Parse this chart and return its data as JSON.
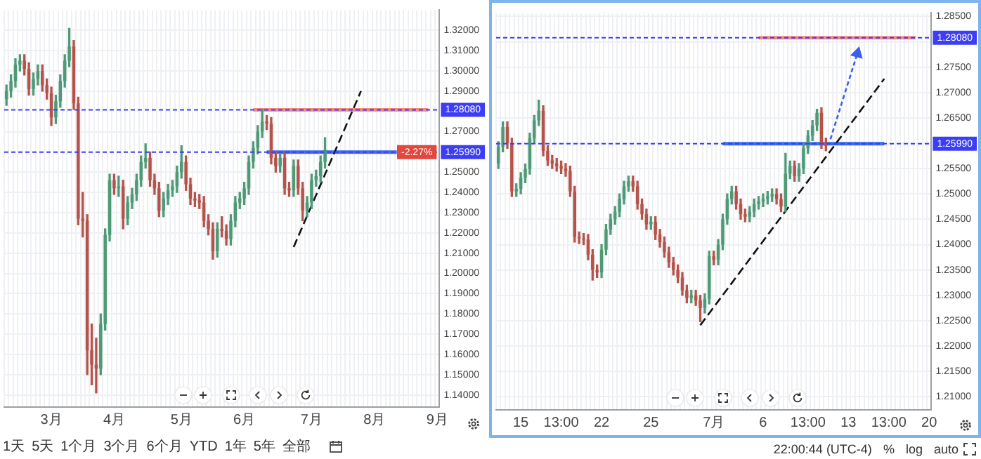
{
  "chart_data": [
    {
      "type": "candlestick",
      "grid": true,
      "categories": [
        null,
        null,
        null,
        null,
        null,
        null,
        null,
        null,
        null,
        null,
        "3月",
        null,
        null,
        null,
        null,
        null,
        null,
        null,
        null,
        null,
        null,
        null,
        null,
        null,
        "4月",
        null,
        null,
        null,
        null,
        null,
        null,
        null,
        null,
        null,
        null,
        null,
        null,
        null,
        null,
        "5月",
        null,
        null,
        null,
        null,
        null,
        null,
        null,
        null,
        null,
        null,
        null,
        null,
        null,
        "6月",
        null,
        null,
        null,
        null,
        null,
        null,
        null,
        null,
        null,
        null,
        null,
        null,
        null,
        null,
        "7月",
        null,
        null,
        null,
        null,
        null,
        null,
        null,
        null,
        null,
        null,
        null,
        null,
        null,
        "8月",
        null,
        null,
        null,
        null,
        null,
        null,
        null,
        null,
        null,
        null,
        null,
        null,
        null,
        "9月"
      ],
      "ohlc": [
        [
          1.286,
          1.293,
          1.283,
          1.29
        ],
        [
          1.29,
          1.298,
          1.287,
          1.295
        ],
        [
          1.295,
          1.306,
          1.292,
          1.303
        ],
        [
          1.303,
          1.308,
          1.3,
          1.305
        ],
        [
          1.305,
          1.308,
          1.298,
          1.301
        ],
        [
          1.301,
          1.304,
          1.288,
          1.291
        ],
        [
          1.291,
          1.299,
          1.288,
          1.296
        ],
        [
          1.296,
          1.303,
          1.293,
          1.3
        ],
        [
          1.3,
          1.303,
          1.29,
          1.293
        ],
        [
          1.293,
          1.296,
          1.286,
          1.289
        ],
        [
          1.289,
          1.292,
          1.273,
          1.277
        ],
        [
          1.277,
          1.288,
          1.274,
          1.285
        ],
        [
          1.285,
          1.298,
          1.282,
          1.295
        ],
        [
          1.295,
          1.308,
          1.292,
          1.305
        ],
        [
          1.305,
          1.321,
          1.302,
          1.312
        ],
        [
          1.312,
          1.315,
          1.281,
          1.284
        ],
        [
          1.284,
          1.287,
          1.224,
          1.227
        ],
        [
          1.227,
          1.24,
          1.218,
          1.226
        ],
        [
          1.226,
          1.229,
          1.15,
          1.162
        ],
        [
          1.162,
          1.175,
          1.145,
          1.155
        ],
        [
          1.155,
          1.168,
          1.141,
          1.153
        ],
        [
          1.153,
          1.18,
          1.15,
          1.175
        ],
        [
          1.175,
          1.222,
          1.172,
          1.219
        ],
        [
          1.219,
          1.249,
          1.216,
          1.246
        ],
        [
          1.246,
          1.249,
          1.239,
          1.242
        ],
        [
          1.242,
          1.248,
          1.238,
          1.243
        ],
        [
          1.243,
          1.246,
          1.222,
          1.227
        ],
        [
          1.227,
          1.238,
          1.224,
          1.235
        ],
        [
          1.235,
          1.242,
          1.232,
          1.239
        ],
        [
          1.239,
          1.249,
          1.236,
          1.246
        ],
        [
          1.246,
          1.258,
          1.243,
          1.255
        ],
        [
          1.255,
          1.264,
          1.252,
          1.257
        ],
        [
          1.257,
          1.26,
          1.243,
          1.246
        ],
        [
          1.246,
          1.249,
          1.239,
          1.242
        ],
        [
          1.242,
          1.245,
          1.228,
          1.231
        ],
        [
          1.231,
          1.24,
          1.228,
          1.237
        ],
        [
          1.237,
          1.244,
          1.234,
          1.241
        ],
        [
          1.241,
          1.246,
          1.238,
          1.243
        ],
        [
          1.243,
          1.253,
          1.24,
          1.25
        ],
        [
          1.25,
          1.263,
          1.247,
          1.255
        ],
        [
          1.255,
          1.258,
          1.241,
          1.244
        ],
        [
          1.244,
          1.247,
          1.234,
          1.237
        ],
        [
          1.237,
          1.24,
          1.233,
          1.236
        ],
        [
          1.236,
          1.239,
          1.232,
          1.235
        ],
        [
          1.235,
          1.238,
          1.223,
          1.226
        ],
        [
          1.226,
          1.229,
          1.219,
          1.222
        ],
        [
          1.222,
          1.225,
          1.207,
          1.211
        ],
        [
          1.211,
          1.225,
          1.208,
          1.222
        ],
        [
          1.222,
          1.228,
          1.218,
          1.221
        ],
        [
          1.221,
          1.224,
          1.214,
          1.217
        ],
        [
          1.217,
          1.229,
          1.214,
          1.226
        ],
        [
          1.226,
          1.238,
          1.223,
          1.235
        ],
        [
          1.235,
          1.24,
          1.232,
          1.237
        ],
        [
          1.237,
          1.245,
          1.234,
          1.242
        ],
        [
          1.242,
          1.258,
          1.239,
          1.255
        ],
        [
          1.255,
          1.265,
          1.252,
          1.262
        ],
        [
          1.262,
          1.273,
          1.259,
          1.27
        ],
        [
          1.27,
          1.281,
          1.267,
          1.275
        ],
        [
          1.275,
          1.278,
          1.271,
          1.274
        ],
        [
          1.274,
          1.277,
          1.254,
          1.257
        ],
        [
          1.257,
          1.26,
          1.25,
          1.253
        ],
        [
          1.253,
          1.26,
          1.25,
          1.257
        ],
        [
          1.257,
          1.26,
          1.239,
          1.242
        ],
        [
          1.242,
          1.245,
          1.238,
          1.241
        ],
        [
          1.241,
          1.256,
          1.238,
          1.253
        ],
        [
          1.253,
          1.256,
          1.239,
          1.242
        ],
        [
          1.242,
          1.245,
          1.226,
          1.231
        ],
        [
          1.231,
          1.238,
          1.228,
          1.235
        ],
        [
          1.235,
          1.249,
          1.232,
          1.246
        ],
        [
          1.246,
          1.251,
          1.243,
          1.248
        ],
        [
          1.248,
          1.258,
          1.245,
          1.255
        ],
        [
          1.255,
          1.267,
          1.252,
          1.261
        ],
        null,
        null,
        null,
        null,
        null,
        null,
        null,
        null,
        null,
        null,
        null,
        null,
        null,
        null,
        null,
        null,
        null,
        null,
        null,
        null,
        null,
        null,
        null,
        null,
        null
      ],
      "colors": [
        "#4e9a77",
        "#4e9a77",
        "#4e9a77",
        "#4e9a77",
        "#b5534a",
        "#b5534a",
        "#4e9a77",
        "#4e9a77",
        "#b5534a",
        "#b5534a",
        "#b5534a",
        "#4e9a77",
        "#4e9a77",
        "#4e9a77",
        "#4e9a77",
        "#b5534a",
        "#b5534a",
        "#b5534a",
        "#b5534a",
        "#b5534a",
        "#b5534a",
        "#4e9a77",
        "#4e9a77",
        "#4e9a77",
        "#b5534a",
        "#4e9a77",
        "#b5534a",
        "#4e9a77",
        "#4e9a77",
        "#4e9a77",
        "#4e9a77",
        "#4e9a77",
        "#b5534a",
        "#b5534a",
        "#b5534a",
        "#4e9a77",
        "#4e9a77",
        "#4e9a77",
        "#4e9a77",
        "#4e9a77",
        "#b5534a",
        "#b5534a",
        "#b5534a",
        "#b5534a",
        "#b5534a",
        "#b5534a",
        "#b5534a",
        "#4e9a77",
        "#b5534a",
        "#b5534a",
        "#4e9a77",
        "#4e9a77",
        "#4e9a77",
        "#4e9a77",
        "#4e9a77",
        "#4e9a77",
        "#4e9a77",
        "#4e9a77",
        "#b5534a",
        "#b5534a",
        "#b5534a",
        "#4e9a77",
        "#b5534a",
        "#b5534a",
        "#4e9a77",
        "#b5534a",
        "#b5534a",
        "#4e9a77",
        "#4e9a77",
        "#4e9a77",
        "#4e9a77",
        "#4e9a77",
        null,
        null,
        null,
        null,
        null,
        null,
        null,
        null,
        null,
        null,
        null,
        null,
        null,
        null,
        null,
        null,
        null,
        null,
        null,
        null,
        null,
        null,
        null,
        null,
        null
      ],
      "series": [
        {
          "type": "line",
          "color": "#111111",
          "line_style": "dashed",
          "marker": "none",
          "values": [
            null,
            null,
            null,
            null,
            null,
            null,
            null,
            null,
            null,
            null,
            null,
            null,
            null,
            null,
            null,
            null,
            null,
            null,
            null,
            null,
            null,
            null,
            null,
            null,
            null,
            null,
            null,
            null,
            null,
            null,
            null,
            null,
            null,
            null,
            null,
            null,
            null,
            null,
            null,
            null,
            null,
            null,
            null,
            null,
            null,
            null,
            null,
            null,
            null,
            null,
            null,
            null,
            null,
            null,
            null,
            null,
            null,
            null,
            null,
            null,
            null,
            null,
            null,
            null,
            1.213,
            null,
            null,
            null,
            null,
            null,
            null,
            null,
            null,
            null,
            null,
            null,
            null,
            null,
            null,
            1.29,
            null,
            null,
            null,
            null,
            null,
            null,
            null,
            null,
            null,
            null,
            null,
            null,
            null,
            null,
            null,
            null,
            null
          ]
        },
        {
          "type": "line",
          "color": "#f08a8a",
          "line_style": "solid",
          "marker": "none",
          "values": [
            null,
            null,
            null,
            null,
            null,
            null,
            null,
            null,
            null,
            null,
            null,
            null,
            null,
            null,
            null,
            null,
            null,
            null,
            null,
            null,
            null,
            null,
            null,
            null,
            null,
            null,
            null,
            null,
            null,
            null,
            null,
            null,
            null,
            null,
            null,
            null,
            null,
            null,
            null,
            null,
            null,
            null,
            null,
            null,
            null,
            null,
            null,
            null,
            null,
            null,
            null,
            null,
            null,
            null,
            null,
            1.2808,
            null,
            null,
            null,
            null,
            null,
            null,
            null,
            null,
            null,
            null,
            null,
            null,
            null,
            null,
            null,
            null,
            null,
            null,
            null,
            null,
            null,
            null,
            null,
            null,
            null,
            null,
            null,
            null,
            null,
            null,
            null,
            null,
            null,
            null,
            null,
            null,
            null,
            null,
            1.2808,
            null,
            null
          ]
        },
        {
          "type": "line",
          "color": "#3b6ff0",
          "line_style": "solid",
          "marker": "none",
          "values": [
            null,
            null,
            null,
            null,
            null,
            null,
            null,
            null,
            null,
            null,
            null,
            null,
            null,
            null,
            null,
            null,
            null,
            null,
            null,
            null,
            null,
            null,
            null,
            null,
            null,
            null,
            null,
            null,
            null,
            null,
            null,
            null,
            null,
            null,
            null,
            null,
            null,
            null,
            null,
            null,
            null,
            null,
            null,
            null,
            null,
            null,
            null,
            null,
            null,
            null,
            null,
            null,
            null,
            null,
            null,
            null,
            null,
            null,
            1.2599,
            null,
            null,
            null,
            null,
            null,
            null,
            null,
            null,
            null,
            null,
            null,
            null,
            null,
            null,
            null,
            null,
            null,
            null,
            null,
            null,
            null,
            null,
            null,
            null,
            null,
            null,
            null,
            null,
            1.2599,
            null,
            null,
            null,
            null,
            null,
            null,
            null,
            null,
            null
          ]
        }
      ],
      "ylim": [
        1.134,
        1.33
      ],
      "yticks": [
        {
          "value": 1.14,
          "label": "1.14000"
        },
        {
          "value": 1.15,
          "label": "1.15000"
        },
        {
          "value": 1.16,
          "label": "1.16000"
        },
        {
          "value": 1.17,
          "label": "1.17000"
        },
        {
          "value": 1.18,
          "label": "1.18000"
        },
        {
          "value": 1.19,
          "label": "1.19000"
        },
        {
          "value": 1.2,
          "label": "1.20000"
        },
        {
          "value": 1.21,
          "label": "1.21000"
        },
        {
          "value": 1.22,
          "label": "1.22000"
        },
        {
          "value": 1.23,
          "label": "1.23000"
        },
        {
          "value": 1.24,
          "label": "1.24000"
        },
        {
          "value": 1.25,
          "label": "1.25000"
        },
        {
          "value": 1.27,
          "label": "1.27000"
        },
        {
          "value": 1.29,
          "label": "1.29000"
        },
        {
          "value": 1.3,
          "label": "1.30000"
        },
        {
          "value": 1.31,
          "label": "1.31000"
        },
        {
          "value": 1.32,
          "label": "1.32000"
        }
      ],
      "ref_lines": [
        {
          "axis": "y",
          "value": 1.2808,
          "label": "1.28080",
          "color": "#3d3df5",
          "line_style": "dotted"
        },
        {
          "axis": "y",
          "value": 1.2599,
          "label": "1.25990",
          "color": "#3d3df5",
          "line_style": "dotted"
        }
      ],
      "annotations": [
        {
          "text": "-2.27%",
          "y": 1.2599
        },
        "1天",
        "5天",
        "1个月",
        "3个月",
        "6个月",
        "YTD",
        "1年",
        "5年",
        "全部"
      ]
    },
    {
      "type": "candlestick",
      "grid": true,
      "categories": [
        null,
        null,
        null,
        null,
        null,
        "15",
        null,
        null,
        null,
        null,
        null,
        null,
        null,
        null,
        "13:00",
        null,
        null,
        null,
        null,
        null,
        null,
        null,
        null,
        "22",
        null,
        null,
        null,
        null,
        null,
        null,
        null,
        null,
        null,
        null,
        "25",
        null,
        null,
        null,
        null,
        null,
        null,
        null,
        null,
        null,
        null,
        null,
        null,
        null,
        "7月",
        null,
        null,
        null,
        null,
        null,
        null,
        null,
        null,
        null,
        null,
        "6",
        null,
        null,
        null,
        null,
        null,
        null,
        null,
        null,
        null,
        "13:00",
        null,
        null,
        null,
        null,
        null,
        null,
        null,
        null,
        "13",
        null,
        null,
        null,
        null,
        null,
        null,
        null,
        null,
        "13:00",
        null,
        null,
        null,
        null,
        null,
        null,
        null,
        null,
        "20"
      ],
      "ohlc": [
        [
          1.256,
          1.2603,
          1.255,
          1.2593
        ],
        [
          1.2593,
          1.2642,
          1.2583,
          1.2632
        ],
        [
          1.2632,
          1.2642,
          1.259,
          1.26
        ],
        [
          1.26,
          1.261,
          1.2495,
          1.2505
        ],
        [
          1.2505,
          1.252,
          1.2495,
          1.251
        ],
        [
          1.251,
          1.2542,
          1.25,
          1.2532
        ],
        [
          1.2532,
          1.2559,
          1.2522,
          1.2549
        ],
        [
          1.2549,
          1.262,
          1.2539,
          1.261
        ],
        [
          1.261,
          1.2655,
          1.26,
          1.2645
        ],
        [
          1.2645,
          1.2685,
          1.2635,
          1.2664
        ],
        [
          1.2664,
          1.2674,
          1.2575,
          1.2585
        ],
        [
          1.2585,
          1.2595,
          1.2556,
          1.2566
        ],
        [
          1.2566,
          1.2576,
          1.255,
          1.256
        ],
        [
          1.256,
          1.257,
          1.2545,
          1.2555
        ],
        [
          1.2555,
          1.2565,
          1.254,
          1.255
        ],
        [
          1.255,
          1.256,
          1.2535,
          1.2545
        ],
        [
          1.2545,
          1.2555,
          1.2495,
          1.2505
        ],
        [
          1.2505,
          1.2515,
          1.2405,
          1.2415
        ],
        [
          1.2415,
          1.2425,
          1.2402,
          1.2412
        ],
        [
          1.2412,
          1.2422,
          1.24,
          1.241
        ],
        [
          1.241,
          1.242,
          1.237,
          1.238
        ],
        [
          1.238,
          1.239,
          1.233,
          1.235
        ],
        [
          1.235,
          1.236,
          1.2335,
          1.2345
        ],
        [
          1.2345,
          1.24,
          1.2335,
          1.239
        ],
        [
          1.239,
          1.244,
          1.238,
          1.243
        ],
        [
          1.243,
          1.246,
          1.242,
          1.245
        ],
        [
          1.245,
          1.2475,
          1.244,
          1.2465
        ],
        [
          1.2465,
          1.25,
          1.2455,
          1.249
        ],
        [
          1.249,
          1.2525,
          1.248,
          1.2515
        ],
        [
          1.2515,
          1.2535,
          1.2505,
          1.2525
        ],
        [
          1.2525,
          1.2535,
          1.2505,
          1.2515
        ],
        [
          1.2515,
          1.2525,
          1.247,
          1.248
        ],
        [
          1.248,
          1.249,
          1.245,
          1.246
        ],
        [
          1.246,
          1.247,
          1.243,
          1.244
        ],
        [
          1.244,
          1.2455,
          1.243,
          1.2445
        ],
        [
          1.2445,
          1.2455,
          1.241,
          1.242
        ],
        [
          1.242,
          1.243,
          1.2395,
          1.2405
        ],
        [
          1.2405,
          1.2415,
          1.2375,
          1.2385
        ],
        [
          1.2385,
          1.2395,
          1.2355,
          1.2365
        ],
        [
          1.2365,
          1.2375,
          1.234,
          1.235
        ],
        [
          1.235,
          1.236,
          1.2325,
          1.2335
        ],
        [
          1.2335,
          1.2345,
          1.23,
          1.231
        ],
        [
          1.231,
          1.232,
          1.2285,
          1.2295
        ],
        [
          1.2295,
          1.231,
          1.2285,
          1.23
        ],
        [
          1.23,
          1.231,
          1.228,
          1.229
        ],
        [
          1.229,
          1.23,
          1.2248,
          1.2275
        ],
        [
          1.2275,
          1.2303,
          1.2265,
          1.2293
        ],
        [
          1.2293,
          1.2387,
          1.2283,
          1.2377
        ],
        [
          1.2377,
          1.2387,
          1.236,
          1.237
        ],
        [
          1.237,
          1.241,
          1.236,
          1.24
        ],
        [
          1.24,
          1.246,
          1.239,
          1.245
        ],
        [
          1.245,
          1.25,
          1.244,
          1.249
        ],
        [
          1.249,
          1.2515,
          1.248,
          1.2505
        ],
        [
          1.2505,
          1.2515,
          1.247,
          1.248
        ],
        [
          1.248,
          1.249,
          1.245,
          1.246
        ],
        [
          1.246,
          1.247,
          1.2445,
          1.2455
        ],
        [
          1.2455,
          1.2475,
          1.2445,
          1.2465
        ],
        [
          1.2465,
          1.249,
          1.2455,
          1.248
        ],
        [
          1.248,
          1.2495,
          1.247,
          1.2485
        ],
        [
          1.2485,
          1.25,
          1.2475,
          1.249
        ],
        [
          1.249,
          1.2505,
          1.248,
          1.2495
        ],
        [
          1.2495,
          1.251,
          1.2485,
          1.25
        ],
        [
          1.25,
          1.251,
          1.248,
          1.249
        ],
        [
          1.249,
          1.25,
          1.2465,
          1.2475
        ],
        [
          1.2475,
          1.258,
          1.2465,
          1.254
        ],
        [
          1.254,
          1.2565,
          1.253,
          1.2555
        ],
        [
          1.2555,
          1.2565,
          1.2525,
          1.2535
        ],
        [
          1.2535,
          1.256,
          1.2525,
          1.255
        ],
        [
          1.255,
          1.26,
          1.254,
          1.259
        ],
        [
          1.259,
          1.2625,
          1.258,
          1.2615
        ],
        [
          1.2615,
          1.2645,
          1.2605,
          1.2635
        ],
        [
          1.2635,
          1.2667,
          1.2625,
          1.266
        ],
        [
          1.266,
          1.267,
          1.259,
          1.26
        ],
        [
          1.26,
          1.261,
          1.2585,
          1.2595
        ],
        null,
        null,
        null,
        null,
        null,
        null,
        null,
        null,
        null,
        null,
        null,
        null,
        null,
        null,
        null,
        null,
        null,
        null,
        null,
        null,
        null,
        null,
        null
      ],
      "colors": [
        "#4e9a77",
        "#4e9a77",
        "#b5534a",
        "#b5534a",
        "#4e9a77",
        "#4e9a77",
        "#4e9a77",
        "#4e9a77",
        "#4e9a77",
        "#4e9a77",
        "#b5534a",
        "#b5534a",
        "#b5534a",
        "#b5534a",
        "#b5534a",
        "#b5534a",
        "#b5534a",
        "#b5534a",
        "#b5534a",
        "#b5534a",
        "#b5534a",
        "#b5534a",
        "#b5534a",
        "#4e9a77",
        "#4e9a77",
        "#4e9a77",
        "#4e9a77",
        "#4e9a77",
        "#4e9a77",
        "#4e9a77",
        "#b5534a",
        "#b5534a",
        "#b5534a",
        "#b5534a",
        "#4e9a77",
        "#b5534a",
        "#b5534a",
        "#b5534a",
        "#b5534a",
        "#b5534a",
        "#b5534a",
        "#b5534a",
        "#b5534a",
        "#4e9a77",
        "#b5534a",
        "#b5534a",
        "#4e9a77",
        "#4e9a77",
        "#b5534a",
        "#4e9a77",
        "#4e9a77",
        "#4e9a77",
        "#4e9a77",
        "#b5534a",
        "#b5534a",
        "#b5534a",
        "#4e9a77",
        "#4e9a77",
        "#4e9a77",
        "#4e9a77",
        "#4e9a77",
        "#4e9a77",
        "#b5534a",
        "#b5534a",
        "#4e9a77",
        "#4e9a77",
        "#b5534a",
        "#4e9a77",
        "#4e9a77",
        "#4e9a77",
        "#4e9a77",
        "#4e9a77",
        "#b5534a",
        "#b5534a",
        null,
        null,
        null,
        null,
        null,
        null,
        null,
        null,
        null,
        null,
        null,
        null,
        null,
        null,
        null,
        null,
        null,
        null,
        null,
        null,
        null,
        null,
        null
      ],
      "series": [
        {
          "type": "line",
          "color": "#111111",
          "line_style": "dashed",
          "marker": "none",
          "values": [
            null,
            null,
            null,
            null,
            null,
            null,
            null,
            null,
            null,
            null,
            null,
            null,
            null,
            null,
            null,
            null,
            null,
            null,
            null,
            null,
            null,
            null,
            null,
            null,
            null,
            null,
            null,
            null,
            null,
            null,
            null,
            null,
            null,
            null,
            null,
            null,
            null,
            null,
            null,
            null,
            null,
            null,
            null,
            null,
            null,
            1.2241,
            null,
            null,
            null,
            null,
            null,
            null,
            null,
            null,
            null,
            null,
            null,
            null,
            null,
            null,
            null,
            null,
            null,
            null,
            null,
            null,
            null,
            null,
            null,
            null,
            null,
            null,
            null,
            null,
            null,
            null,
            null,
            null,
            null,
            null,
            null,
            null,
            null,
            null,
            null,
            null,
            1.2727,
            null,
            null,
            null,
            null,
            null,
            null,
            null,
            null,
            null,
            null
          ]
        },
        {
          "type": "line",
          "color": "#3b5ff0",
          "line_style": "dotted",
          "marker": "triangle",
          "values": [
            null,
            null,
            null,
            null,
            null,
            null,
            null,
            null,
            null,
            null,
            null,
            null,
            null,
            null,
            null,
            null,
            null,
            null,
            null,
            null,
            null,
            null,
            null,
            null,
            null,
            null,
            null,
            null,
            null,
            null,
            null,
            null,
            null,
            null,
            null,
            null,
            null,
            null,
            null,
            null,
            null,
            null,
            null,
            null,
            null,
            null,
            null,
            null,
            null,
            null,
            null,
            null,
            null,
            null,
            null,
            null,
            null,
            null,
            null,
            null,
            null,
            null,
            null,
            null,
            null,
            null,
            null,
            null,
            null,
            null,
            null,
            null,
            null,
            null,
            1.2608,
            null,
            null,
            null,
            null,
            null,
            1.2777,
            null,
            null,
            null,
            null,
            null,
            null,
            null,
            null,
            null,
            null,
            null,
            null,
            null,
            null,
            null,
            null
          ]
        },
        {
          "type": "line",
          "color": "#3b6ff0",
          "line_style": "solid",
          "marker": "none",
          "values": [
            null,
            null,
            null,
            null,
            null,
            null,
            null,
            null,
            null,
            null,
            null,
            null,
            null,
            null,
            null,
            null,
            null,
            null,
            null,
            null,
            null,
            null,
            null,
            null,
            null,
            null,
            null,
            null,
            null,
            null,
            null,
            null,
            null,
            null,
            null,
            null,
            null,
            null,
            null,
            null,
            null,
            null,
            null,
            null,
            null,
            null,
            null,
            null,
            null,
            null,
            1.2599,
            null,
            null,
            null,
            null,
            null,
            null,
            null,
            null,
            null,
            null,
            null,
            null,
            null,
            null,
            null,
            null,
            null,
            null,
            null,
            null,
            null,
            null,
            null,
            null,
            null,
            null,
            null,
            null,
            null,
            null,
            null,
            null,
            null,
            null,
            null,
            1.2599,
            null,
            null,
            null,
            null,
            null,
            null,
            null,
            null,
            null,
            null
          ]
        },
        {
          "type": "line",
          "color": "#f08a8a",
          "line_style": "solid",
          "marker": "none",
          "values": [
            null,
            null,
            null,
            null,
            null,
            null,
            null,
            null,
            null,
            null,
            null,
            null,
            null,
            null,
            null,
            null,
            null,
            null,
            null,
            null,
            null,
            null,
            null,
            null,
            null,
            null,
            null,
            null,
            null,
            null,
            null,
            null,
            null,
            null,
            null,
            null,
            null,
            null,
            null,
            null,
            null,
            null,
            null,
            null,
            null,
            null,
            null,
            null,
            null,
            null,
            null,
            null,
            null,
            null,
            null,
            null,
            null,
            null,
            1.2808,
            null,
            null,
            null,
            null,
            null,
            null,
            null,
            null,
            null,
            null,
            null,
            null,
            null,
            null,
            null,
            null,
            null,
            null,
            null,
            null,
            null,
            null,
            null,
            null,
            null,
            null,
            null,
            null,
            null,
            null,
            null,
            null,
            null,
            null,
            1.2808,
            null,
            null,
            null
          ]
        }
      ],
      "ylim": [
        1.2074,
        1.2857
      ],
      "yticks": [
        {
          "value": 1.21,
          "label": "1.21000"
        },
        {
          "value": 1.215,
          "label": "1.21500"
        },
        {
          "value": 1.22,
          "label": "1.22000"
        },
        {
          "value": 1.225,
          "label": "1.22500"
        },
        {
          "value": 1.23,
          "label": "1.23000"
        },
        {
          "value": 1.235,
          "label": "1.23500"
        },
        {
          "value": 1.24,
          "label": "1.24000"
        },
        {
          "value": 1.245,
          "label": "1.24500"
        },
        {
          "value": 1.25,
          "label": "1.25000"
        },
        {
          "value": 1.255,
          "label": "1.25500"
        },
        {
          "value": 1.26,
          "label": null
        },
        {
          "value": 1.265,
          "label": "1.26500"
        },
        {
          "value": 1.27,
          "label": "1.27000"
        },
        {
          "value": 1.275,
          "label": "1.27500"
        },
        {
          "value": 1.28,
          "label": null
        },
        {
          "value": 1.285,
          "label": "1.28500"
        }
      ],
      "ref_lines": [
        {
          "axis": "y",
          "value": 1.2808,
          "label": "1.28080",
          "color": "#3d3df5",
          "line_style": "dotted"
        },
        {
          "axis": "y",
          "value": 1.2599,
          "label": "1.25990",
          "color": "#3d3df5",
          "line_style": "dotted"
        }
      ],
      "annotations": [
        "22:00:44 (UTC-4)",
        "%",
        "log",
        "auto"
      ]
    }
  ]
}
